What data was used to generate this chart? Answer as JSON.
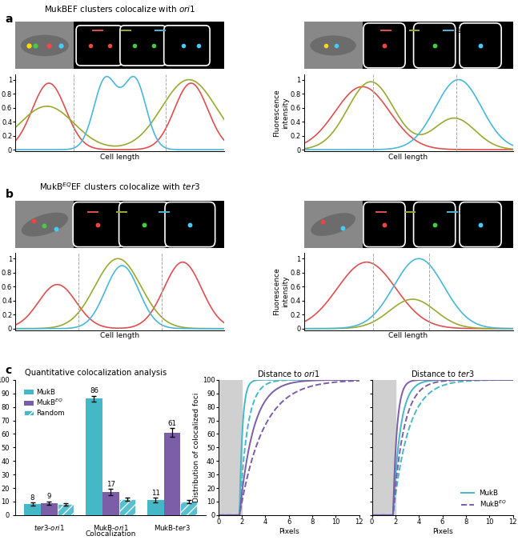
{
  "col_ori1": "#e05050",
  "col_mukb_line": "#9aaa30",
  "col_ter3": "#4ab8d8",
  "col_mukb_bar": "#45b8c8",
  "col_mukbeq_bar": "#7b5ea7",
  "bar_mukb": [
    8,
    86,
    11
  ],
  "bar_mukbeq": [
    9,
    17,
    61
  ],
  "bar_errors_mukb": [
    1.2,
    2.2,
    1.8
  ],
  "bar_errors_mukbeq": [
    1.2,
    2.2,
    3.2
  ],
  "bar_labels_mukb": [
    "8",
    "86",
    "11"
  ],
  "bar_labels_mukbeq": [
    "9",
    "17",
    "61"
  ],
  "random_vals": [
    8,
    12,
    10
  ],
  "random_err": [
    0.8,
    1.2,
    1.2
  ]
}
